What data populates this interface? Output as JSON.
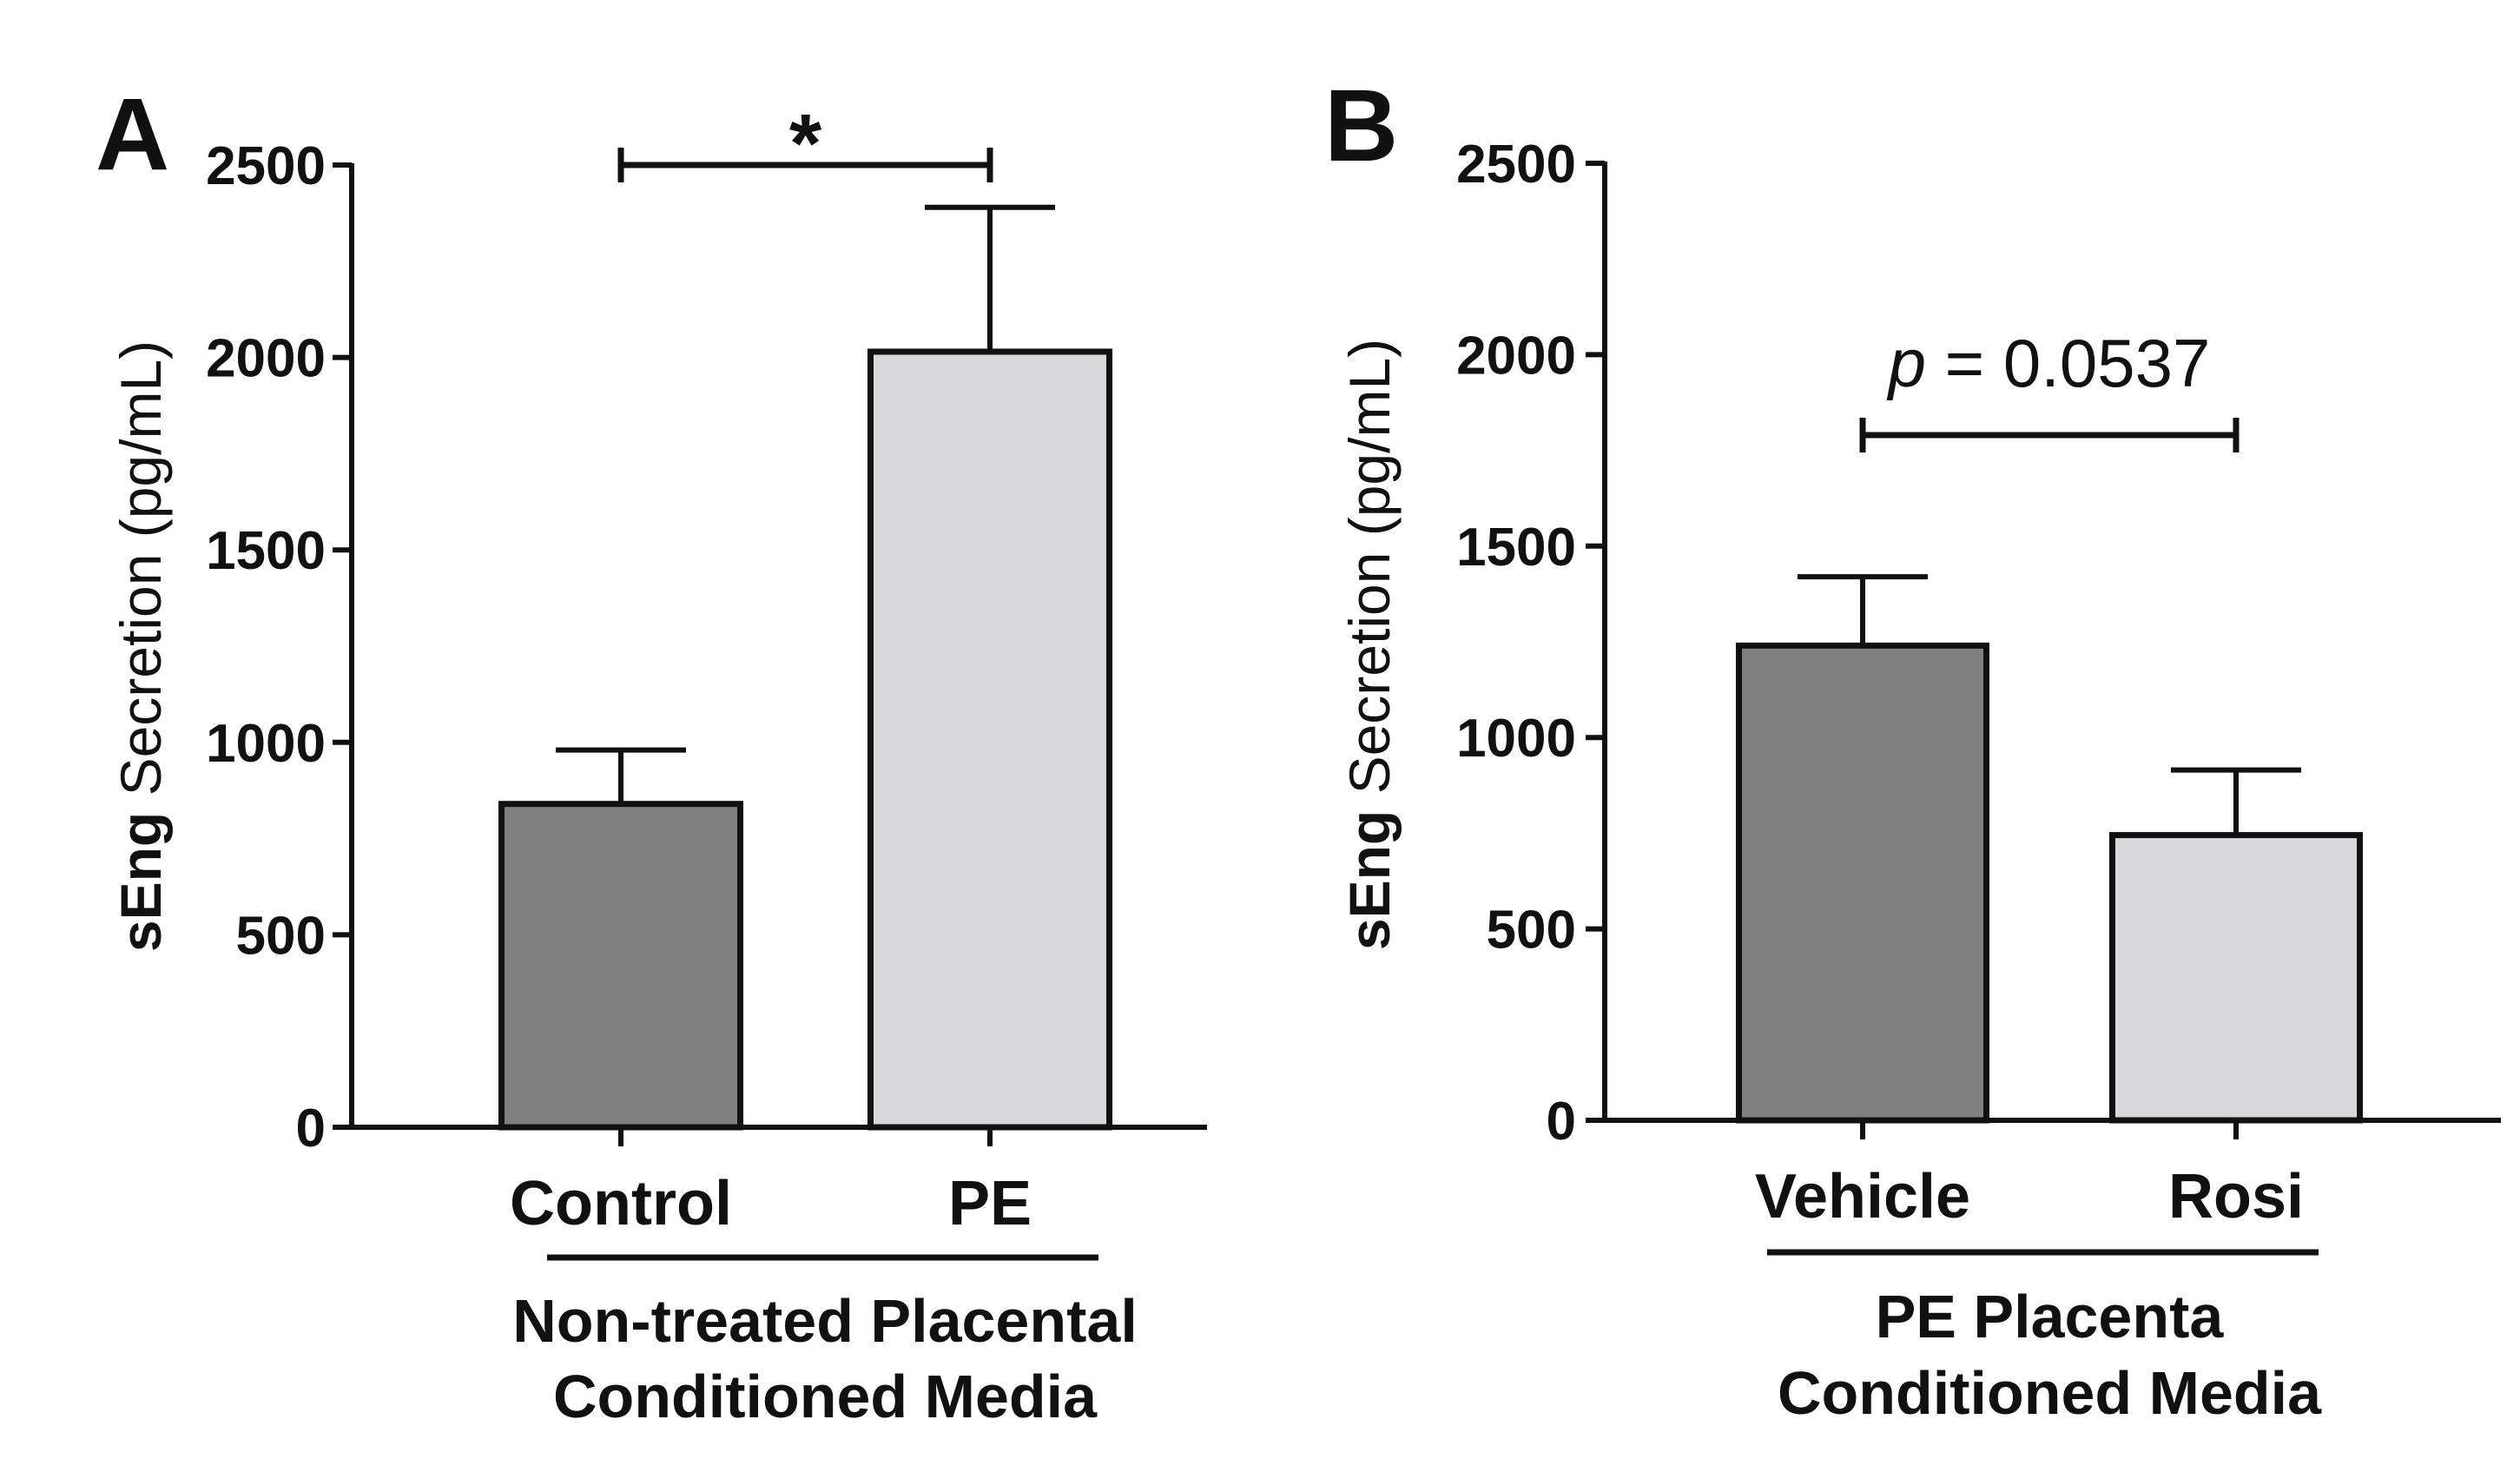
{
  "colors": {
    "axis": "#111111",
    "bar_dark": "#808080",
    "bar_light": "#d9d9db",
    "bar_edge": "#111111"
  },
  "chart_data": [
    {
      "type": "bar",
      "panel_label": "A",
      "title": "",
      "ylabel_bold": "sEng",
      "ylabel_rest": " Secretion (pg/mL)",
      "ylim": [
        0,
        2500
      ],
      "yticks": [
        0,
        500,
        1000,
        1500,
        2000,
        2500
      ],
      "categories": [
        "Control",
        "PE"
      ],
      "values": [
        840,
        2015
      ],
      "errors": [
        140,
        375
      ],
      "bar_colors": [
        "#808080",
        "#d9d9db"
      ],
      "group_label": [
        "Non-treated Placental",
        "Conditioned Media"
      ],
      "significance": {
        "from": 0,
        "to": 1,
        "label": "*",
        "level": 2500
      }
    },
    {
      "type": "bar",
      "panel_label": "B",
      "title": "",
      "ylabel_bold": "sEng",
      "ylabel_rest": " Secretion (pg/mL)",
      "ylim": [
        0,
        2500
      ],
      "yticks": [
        0,
        500,
        1000,
        1500,
        2000,
        2500
      ],
      "categories": [
        "Vehicle",
        "Rosi"
      ],
      "values": [
        1240,
        745
      ],
      "errors": [
        180,
        170
      ],
      "bar_colors": [
        "#808080",
        "#d9d9db"
      ],
      "group_label": [
        "PE Placenta",
        "Conditioned Media"
      ],
      "significance": {
        "from": 0,
        "to": 1,
        "label_italic": "p",
        "label": " = 0.0537",
        "level": 1790
      }
    }
  ]
}
